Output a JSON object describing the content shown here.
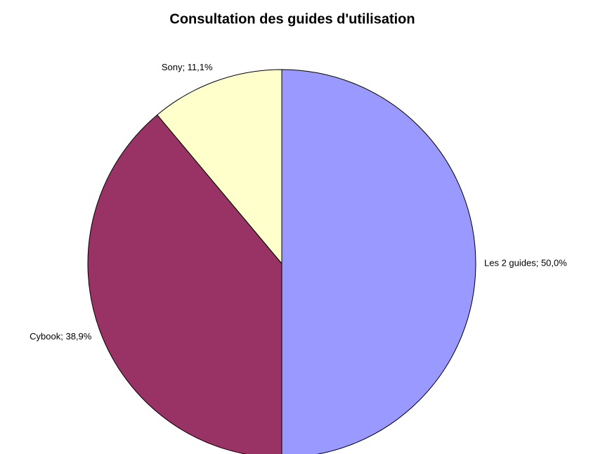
{
  "chart_data": {
    "type": "pie",
    "title": "Consultation des guides d'utilisation",
    "values": [
      50.0,
      38.9,
      11.1
    ],
    "value_labels": [
      "Les 2 guides; 50,0%",
      "Cybook; 38,9%",
      "Sony; 11,1%"
    ],
    "colors": [
      "#9999ff",
      "#993366",
      "#ffffcc"
    ]
  }
}
